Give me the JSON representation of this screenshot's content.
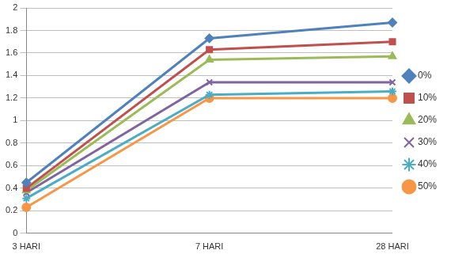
{
  "chart_data": {
    "type": "line",
    "categories": [
      "3 HARI",
      "7 HARI",
      "28 HARI"
    ],
    "series": [
      {
        "name": "0%",
        "color": "#4f81bd",
        "marker": "diamond",
        "values": [
          0.45,
          1.73,
          1.87
        ]
      },
      {
        "name": "10%",
        "color": "#c0504d",
        "marker": "square",
        "values": [
          0.4,
          1.63,
          1.7
        ]
      },
      {
        "name": "20%",
        "color": "#9bbb59",
        "marker": "triangle",
        "values": [
          0.38,
          1.54,
          1.57
        ]
      },
      {
        "name": "30%",
        "color": "#8064a2",
        "marker": "x",
        "values": [
          0.36,
          1.34,
          1.34
        ]
      },
      {
        "name": "40%",
        "color": "#4bacc6",
        "marker": "star",
        "values": [
          0.31,
          1.23,
          1.26
        ]
      },
      {
        "name": "50%",
        "color": "#f79646",
        "marker": "circle",
        "values": [
          0.23,
          1.2,
          1.2
        ]
      }
    ],
    "ylim": [
      0,
      2
    ],
    "yticks": [
      0,
      0.2,
      0.4,
      0.6,
      0.8,
      1,
      1.2,
      1.4,
      1.6,
      1.8,
      2
    ],
    "grid": true,
    "legend": "right"
  }
}
